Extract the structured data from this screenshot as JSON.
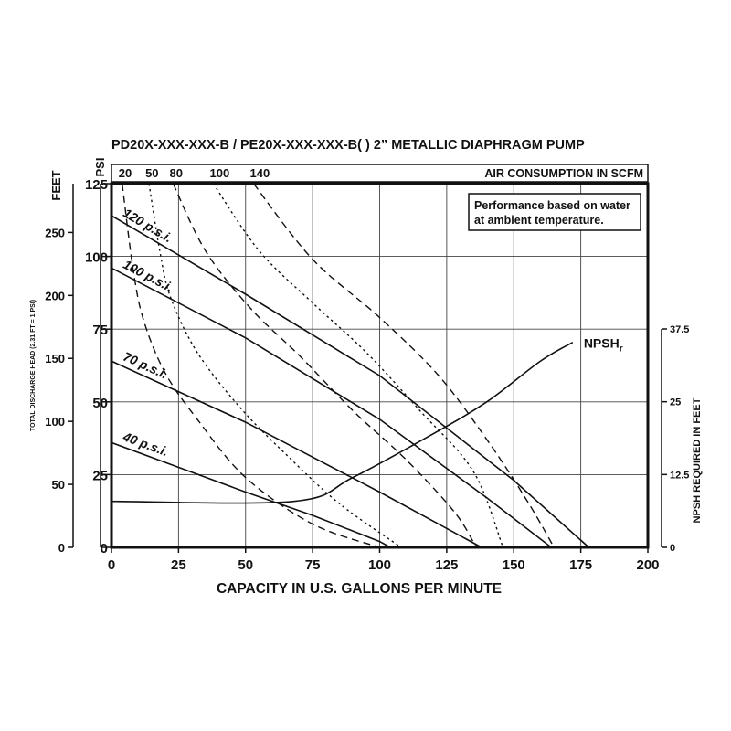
{
  "chart_data": {
    "type": "line",
    "title": "PD20X-XXX-XXX-B / PE20X-XXX-XXX-B( )   2” METALLIC DIAPHRAGM PUMP",
    "xlabel": "CAPACITY IN U.S. GALLONS PER MINUTE",
    "ylabel_psi": "PSI",
    "ylabel_feet_unit": "FEET",
    "ylabel_feet": "TOTAL DISCHARGE HEAD (2.31 FT = 1 PSI)",
    "ylabel_right": "NPSH REQUIRED IN FEET",
    "top_axis_label": "AIR CONSUMPTION IN SCFM",
    "note_lines": [
      "Performance based on water",
      "at ambient temperature."
    ],
    "xlim": [
      0,
      200
    ],
    "ylim": [
      0,
      125
    ],
    "x_ticks": [
      0,
      25,
      50,
      75,
      100,
      125,
      150,
      175,
      200
    ],
    "psi_ticks": [
      0,
      25,
      50,
      75,
      100,
      125
    ],
    "feet_ticks": [
      0,
      50,
      100,
      150,
      200,
      250
    ],
    "npsh_ticks": [
      "0",
      "12.5",
      "25",
      "37.5"
    ],
    "top_ticks": [
      "20",
      "50",
      "80",
      "100",
      "140"
    ],
    "series": [
      {
        "name": "120 p.s.i.",
        "style": "solid",
        "points": [
          [
            0,
            114
          ],
          [
            50,
            87
          ],
          [
            100,
            59
          ],
          [
            150,
            23
          ],
          [
            178,
            0
          ]
        ]
      },
      {
        "name": "100 p.s.i.",
        "style": "solid",
        "points": [
          [
            0,
            96
          ],
          [
            50,
            72
          ],
          [
            100,
            44
          ],
          [
            140,
            17
          ],
          [
            164,
            0
          ]
        ]
      },
      {
        "name": "70 p.s.i.",
        "style": "solid",
        "points": [
          [
            0,
            64
          ],
          [
            50,
            43
          ],
          [
            100,
            19
          ],
          [
            138,
            0
          ]
        ]
      },
      {
        "name": "40 p.s.i.",
        "style": "solid",
        "points": [
          [
            0,
            36
          ],
          [
            50,
            19
          ],
          [
            75,
            11
          ],
          [
            100,
            2
          ],
          [
            104,
            0
          ]
        ]
      },
      {
        "name": "NPSHr",
        "style": "solid",
        "axis": "right",
        "points": [
          [
            0,
            7.9
          ],
          [
            68,
            7.9
          ],
          [
            90,
            12
          ],
          [
            120,
            19.5
          ],
          [
            140,
            25
          ],
          [
            160,
            32
          ],
          [
            172,
            35.2
          ]
        ]
      }
    ],
    "air_consumption_curves": [
      {
        "label": "20",
        "style": "dashed",
        "points": [
          [
            4,
            125
          ],
          [
            8,
            96
          ],
          [
            12,
            78
          ],
          [
            20,
            60
          ],
          [
            32,
            44
          ],
          [
            50,
            24
          ],
          [
            75,
            8
          ],
          [
            100,
            0
          ]
        ]
      },
      {
        "label": "50",
        "style": "dotted",
        "points": [
          [
            14,
            125
          ],
          [
            18,
            102
          ],
          [
            22,
            86
          ],
          [
            32,
            67
          ],
          [
            48,
            48
          ],
          [
            65,
            32
          ],
          [
            85,
            15
          ],
          [
            108,
            0
          ]
        ]
      },
      {
        "label": "80",
        "style": "dashed",
        "points": [
          [
            23,
            125
          ],
          [
            35,
            102
          ],
          [
            52,
            82
          ],
          [
            70,
            66
          ],
          [
            90,
            47
          ],
          [
            110,
            30
          ],
          [
            128,
            12
          ],
          [
            136,
            0
          ]
        ]
      },
      {
        "label": "100",
        "style": "dotted",
        "points": [
          [
            38,
            125
          ],
          [
            55,
            102
          ],
          [
            75,
            84
          ],
          [
            95,
            67
          ],
          [
            115,
            47
          ],
          [
            135,
            26
          ],
          [
            146,
            0
          ]
        ]
      },
      {
        "label": "140",
        "style": "dashed",
        "points": [
          [
            53,
            125
          ],
          [
            75,
            99
          ],
          [
            100,
            79
          ],
          [
            122,
            59
          ],
          [
            140,
            37
          ],
          [
            155,
            16
          ],
          [
            165,
            0
          ]
        ]
      }
    ],
    "grid": true,
    "legend": "none"
  }
}
